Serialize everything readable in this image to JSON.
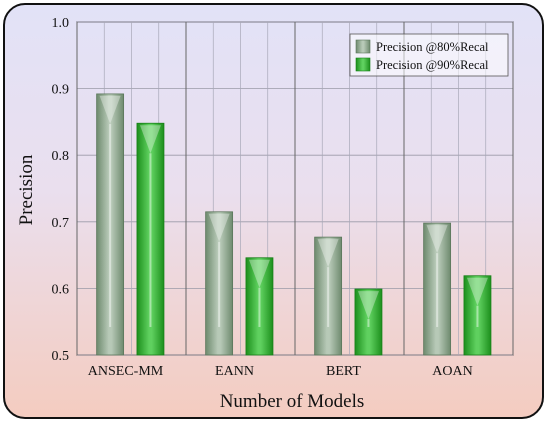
{
  "chart_data": {
    "type": "bar",
    "title": "",
    "xlabel": "Number of Models",
    "ylabel": "Precision",
    "categories": [
      "ANSEC-MM",
      "EANN",
      "BERT",
      "AOAN"
    ],
    "series": [
      {
        "name": "Precision @80%Recal",
        "values": [
          0.892,
          0.715,
          0.677,
          0.698
        ],
        "color": "#8aa88a"
      },
      {
        "name": "Precision @90%Recal",
        "values": [
          0.848,
          0.646,
          0.599,
          0.619
        ],
        "color": "#2aa52a"
      }
    ],
    "ylim": [
      0.5,
      1.0
    ],
    "yticks": [
      "0.5",
      "0.6",
      "0.7",
      "0.8",
      "0.9",
      "1.0"
    ],
    "grid": true,
    "legend_position": "top-right"
  }
}
